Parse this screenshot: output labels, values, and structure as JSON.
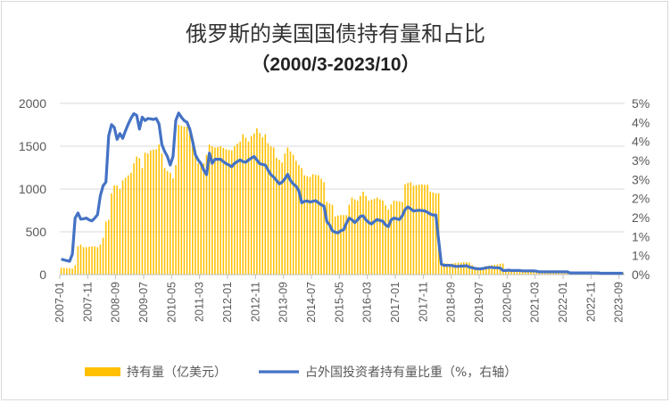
{
  "chart_data": {
    "type": "bar+line",
    "title": "俄罗斯的美国国债持有量和占比",
    "subtitle": "（2000/3-2023/10）",
    "x_start": "2007-01",
    "x_end": "2023-10",
    "x_tick_labels": [
      "2007-01",
      "2007-11",
      "2008-09",
      "2009-07",
      "2010-05",
      "2011-03",
      "2012-01",
      "2012-11",
      "2013-09",
      "2014-07",
      "2015-05",
      "2016-03",
      "2017-01",
      "2017-11",
      "2018-09",
      "2019-07",
      "2020-05",
      "2021-03",
      "2022-01",
      "2022-11",
      "2023-09"
    ],
    "y_left": {
      "label": "",
      "ylim": [
        0,
        2000
      ],
      "ticks": [
        "0",
        "500",
        "1000",
        "1500",
        "2000"
      ]
    },
    "y_right": {
      "label": "",
      "ylim": [
        0,
        5
      ],
      "ticks": [
        "0%",
        "1%",
        "1%",
        "2%",
        "2%",
        "3%",
        "3%",
        "4%",
        "4%",
        "5%"
      ]
    },
    "grid": true,
    "legend_position": "bottom",
    "series": [
      {
        "name": "持有量（亿美元）",
        "type": "bar",
        "axis": "left",
        "color": "#FFC000",
        "values": [
          80,
          80,
          75,
          75,
          70,
          110,
          330,
          350,
          320,
          320,
          325,
          330,
          330,
          320,
          350,
          430,
          620,
          640,
          950,
          1040,
          1040,
          1000,
          1100,
          1130,
          1160,
          1190,
          1300,
          1380,
          1360,
          1245,
          1425,
          1415,
          1450,
          1460,
          1465,
          1520,
          1415,
          1245,
          1210,
          1190,
          1125,
          1280,
          1750,
          1740,
          1730,
          1725,
          1640,
          1500,
          1415,
          1300,
          1300,
          1300,
          1400,
          1520,
          1500,
          1485,
          1490,
          1500,
          1480,
          1465,
          1455,
          1450,
          1500,
          1530,
          1555,
          1640,
          1600,
          1555,
          1620,
          1650,
          1710,
          1655,
          1605,
          1640,
          1535,
          1500,
          1485,
          1365,
          1340,
          1310,
          1415,
          1485,
          1440,
          1400,
          1330,
          1280,
          1245,
          1160,
          1150,
          1140,
          1175,
          1165,
          1160,
          1120,
          1080,
          850,
          830,
          815,
          680,
          690,
          695,
          695,
          695,
          815,
          900,
          880,
          865,
          920,
          970,
          920,
          865,
          875,
          885,
          900,
          880,
          865,
          810,
          760,
          820,
          865,
          860,
          855,
          850,
          1055,
          1070,
          1080,
          1040,
          1045,
          1050,
          1055,
          1050,
          1050,
          970,
          960,
          950,
          950,
          145,
          135,
          130,
          127,
          130,
          135,
          140,
          140,
          145,
          145,
          140,
          110,
          90,
          80,
          75,
          90,
          100,
          105,
          110,
          115,
          120,
          127,
          130,
          60,
          50,
          50,
          50,
          50,
          50,
          50,
          50,
          50,
          50,
          50,
          50,
          35,
          35,
          35,
          35,
          35,
          35,
          35,
          35,
          35,
          35,
          35,
          25,
          25,
          25,
          25,
          25,
          25,
          25,
          25,
          25,
          25,
          25,
          18,
          18,
          18,
          18,
          18,
          18,
          18,
          18,
          18
        ]
      },
      {
        "name": "占外国投资者持有量比重（%，右轴）",
        "type": "line",
        "axis": "right",
        "color": "#4472C4",
        "values": [
          0.45,
          0.43,
          0.41,
          0.39,
          0.6,
          1.65,
          1.8,
          1.62,
          1.63,
          1.65,
          1.6,
          1.57,
          1.65,
          1.75,
          2.3,
          2.6,
          2.7,
          4.05,
          4.38,
          4.3,
          3.95,
          4.12,
          3.98,
          4.2,
          4.4,
          4.57,
          4.7,
          4.65,
          4.25,
          4.6,
          4.5,
          4.56,
          4.55,
          4.53,
          4.56,
          4.4,
          3.8,
          3.6,
          3.45,
          3.2,
          3.45,
          4.5,
          4.72,
          4.6,
          4.5,
          4.45,
          4.25,
          3.9,
          3.5,
          3.35,
          3.24,
          3.05,
          2.92,
          3.55,
          3.25,
          3.37,
          3.37,
          3.37,
          3.3,
          3.24,
          3.2,
          3.15,
          3.25,
          3.3,
          3.35,
          3.3,
          3.28,
          3.35,
          3.4,
          3.45,
          3.35,
          3.24,
          3.22,
          3.2,
          3.05,
          2.92,
          2.85,
          2.75,
          2.65,
          2.7,
          2.8,
          2.93,
          2.75,
          2.65,
          2.58,
          2.45,
          2.1,
          2.14,
          2.15,
          2.12,
          2.14,
          2.16,
          2.1,
          2.04,
          2.0,
          1.55,
          1.45,
          1.28,
          1.24,
          1.22,
          1.28,
          1.31,
          1.5,
          1.65,
          1.6,
          1.52,
          1.6,
          1.7,
          1.72,
          1.6,
          1.52,
          1.48,
          1.55,
          1.61,
          1.58,
          1.56,
          1.45,
          1.4,
          1.6,
          1.65,
          1.63,
          1.61,
          1.72,
          1.9,
          1.98,
          1.92,
          1.86,
          1.87,
          1.88,
          1.87,
          1.86,
          1.82,
          1.77,
          1.74,
          1.74,
          1.0,
          0.3,
          0.27,
          0.27,
          0.27,
          0.26,
          0.24,
          0.24,
          0.25,
          0.25,
          0.26,
          0.22,
          0.2,
          0.18,
          0.17,
          0.17,
          0.18,
          0.2,
          0.21,
          0.21,
          0.2,
          0.2,
          0.19,
          0.12,
          0.12,
          0.13,
          0.12,
          0.12,
          0.12,
          0.12,
          0.11,
          0.11,
          0.11,
          0.11,
          0.11,
          0.1,
          0.08,
          0.08,
          0.08,
          0.08,
          0.08,
          0.08,
          0.08,
          0.08,
          0.08,
          0.08,
          0.08,
          0.05,
          0.05,
          0.05,
          0.05,
          0.05,
          0.05,
          0.05,
          0.05,
          0.05,
          0.05,
          0.05,
          0.04,
          0.04,
          0.04,
          0.04,
          0.04,
          0.04,
          0.04,
          0.04,
          0.04
        ]
      }
    ]
  }
}
